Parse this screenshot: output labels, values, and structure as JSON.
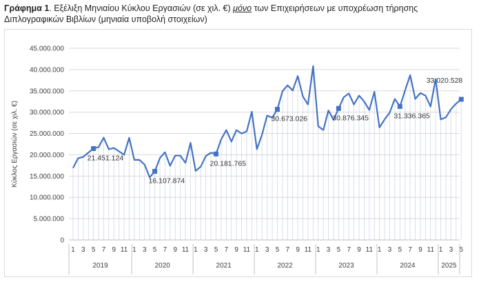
{
  "caption": {
    "label": "Γράφημα 1",
    "part1": ". Εξέλιξη Μηνιαίου Κύκλου Εργασιών (σε χιλ. €) ",
    "underlined": "μόνο",
    "part2": " των Επιχειρήσεων με υποχρέωση τήρησης Διπλογραφικών Βιβλίων (μηνιαία υποβολή στοιχείων)"
  },
  "chart_data": {
    "type": "line",
    "title": "",
    "ylabel": "Κύκλος Εργασιών (σε χιλ. €)",
    "xlabel": "",
    "ylim": [
      0,
      45000000
    ],
    "yticks": [
      0,
      5000000,
      10000000,
      15000000,
      20000000,
      25000000,
      30000000,
      35000000,
      40000000,
      45000000
    ],
    "ytick_labels": [
      "0",
      "5.000.000",
      "10.000.000",
      "15.000.000",
      "20.000.000",
      "25.000.000",
      "30.000.000",
      "35.000.000",
      "40.000.000",
      "45.000.000"
    ],
    "grid": "horizontal",
    "line_color": "#4472c4",
    "x_month_labels_shown": [
      "1",
      "3",
      "5",
      "7",
      "9",
      "11"
    ],
    "years": [
      "2019",
      "2020",
      "2021",
      "2022",
      "2023",
      "2024",
      "2025"
    ],
    "series": [
      {
        "values": [
          16900000,
          19200000,
          19500000,
          20500000,
          21451124,
          21800000,
          24000000,
          21300000,
          21600000,
          20800000,
          20000000,
          24000000,
          18800000,
          18800000,
          17700000,
          14700000,
          16107874,
          19200000,
          20600000,
          17400000,
          19800000,
          19800000,
          18100000,
          22800000,
          16200000,
          17200000,
          19700000,
          20500000,
          20181765,
          23600000,
          25800000,
          23100000,
          25800000,
          25000000,
          25500000,
          30100000,
          21300000,
          24700000,
          29200000,
          28700000,
          30673026,
          34900000,
          36300000,
          35100000,
          38500000,
          33700000,
          31800000,
          40800000,
          26700000,
          25800000,
          30400000,
          28200000,
          30876345,
          33500000,
          34400000,
          31800000,
          33900000,
          32500000,
          30500000,
          34800000,
          26400000,
          28300000,
          29900000,
          33100000,
          31336365,
          35100000,
          38700000,
          33100000,
          34500000,
          33900000,
          31300000,
          37800000,
          28300000,
          28800000,
          30700000,
          32000000,
          33020528
        ]
      }
    ],
    "markers": [
      {
        "index": 4,
        "value": 21451124,
        "label": "21.451.124"
      },
      {
        "index": 16,
        "value": 16107874,
        "label": "16.107.874"
      },
      {
        "index": 28,
        "value": 20181765,
        "label": "20.181.765"
      },
      {
        "index": 40,
        "value": 30673026,
        "label": "30.673.026"
      },
      {
        "index": 52,
        "value": 30876345,
        "label": "30.876.345"
      },
      {
        "index": 64,
        "value": 31336365,
        "label": "31.336.365"
      },
      {
        "index": 76,
        "value": 33020528,
        "label": "33.020.528"
      }
    ]
  }
}
